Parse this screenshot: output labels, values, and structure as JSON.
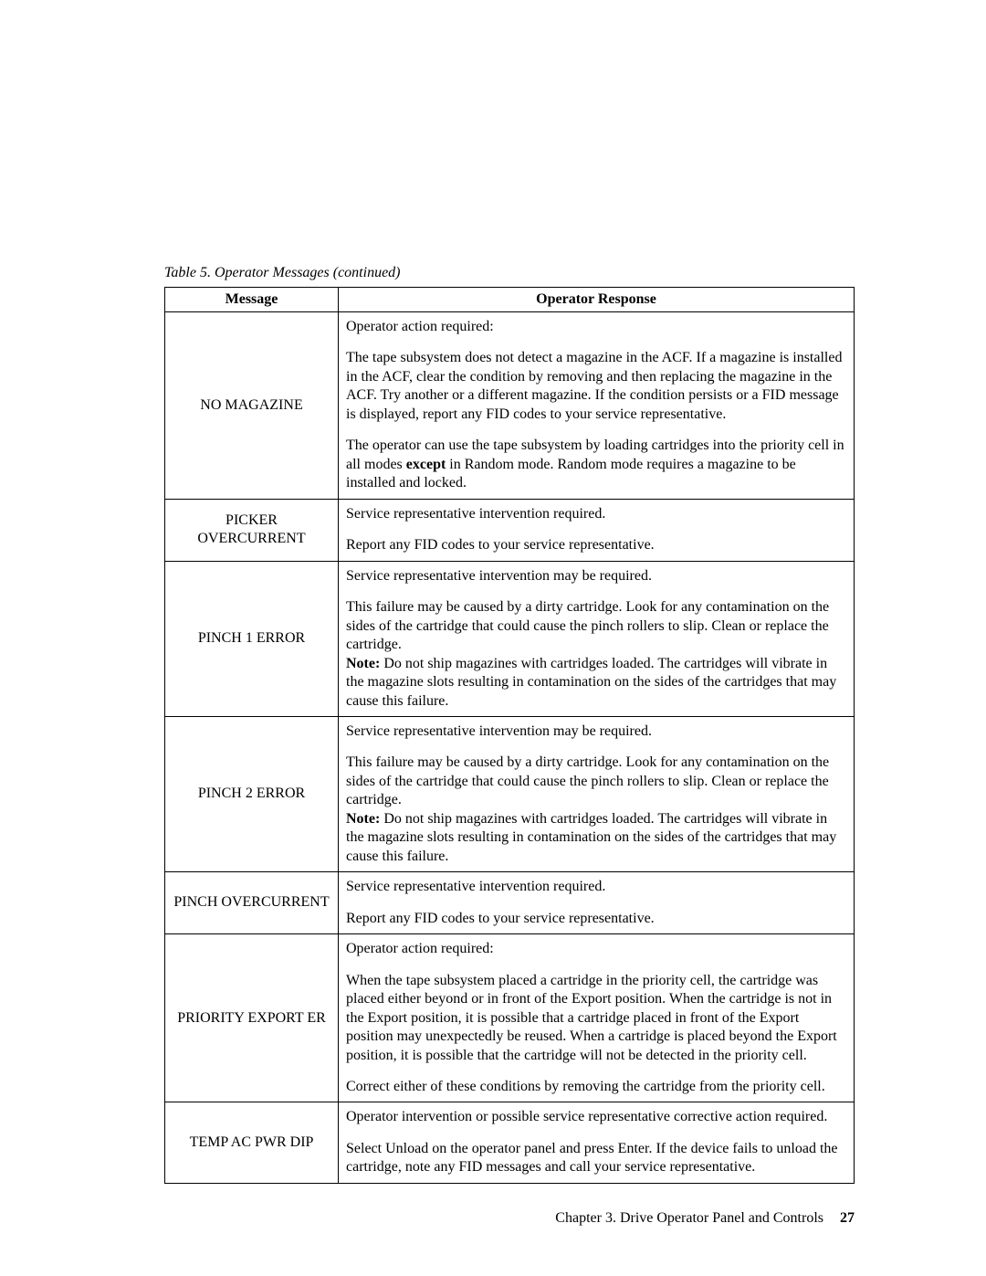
{
  "caption": "Table 5. Operator Messages  (continued)",
  "headers": {
    "message": "Message",
    "response": "Operator Response"
  },
  "rows": [
    {
      "message": "NO MAGAZINE",
      "response": [
        "Operator action required:",
        "The tape subsystem does not detect a magazine in the ACF. If a magazine is installed in the ACF, clear the condition by removing and then replacing the magazine in the ACF. Try another or a different magazine. If the condition persists or a FID message is displayed, report any FID codes to your service representative.",
        "The operator can use the tape subsystem by loading cartridges into the priority cell in all modes <b>except</b> in Random mode. Random mode requires a magazine to be installed and locked."
      ]
    },
    {
      "message": "PICKER OVERCURRENT",
      "response": [
        "Service representative intervention required.",
        "Report any FID codes to your service representative."
      ]
    },
    {
      "message": "PINCH 1 ERROR",
      "response": [
        "Service representative intervention may be required.",
        "This failure may be caused by a dirty cartridge. Look for any contamination on the sides of the cartridge that could cause the pinch rollers to slip. Clean or replace the cartridge.<br><b>Note:</b>  Do not ship magazines with cartridges loaded. The cartridges will vibrate in the magazine slots resulting in contamination on the sides of the cartridges that may cause this failure."
      ]
    },
    {
      "message": "PINCH 2 ERROR",
      "response": [
        "Service representative intervention may be required.",
        "This failure may be caused by a dirty cartridge. Look for any contamination on the sides of the cartridge that could cause the pinch rollers to slip. Clean or replace the cartridge.<br><b>Note:</b>  Do not ship magazines with cartridges loaded. The cartridges will vibrate in the magazine slots resulting in contamination on the sides of the cartridges that may cause this failure."
      ]
    },
    {
      "message": "PINCH OVERCURRENT",
      "response": [
        "Service representative intervention required.",
        "Report any FID codes to your service representative."
      ]
    },
    {
      "message": "PRIORITY EXPORT ER",
      "response": [
        "Operator action required:",
        "When the tape subsystem placed a cartridge in the priority cell, the cartridge was placed either beyond or in front of the Export position. When the cartridge is not in the Export position, it is possible that a cartridge placed in front of the Export position may unexpectedly be reused. When a cartridge is placed beyond the Export position, it is possible that the cartridge will not be detected in the priority cell.",
        "Correct either of these conditions by removing the cartridge from the priority cell."
      ]
    },
    {
      "message": "TEMP AC PWR DIP",
      "response": [
        "Operator intervention or possible service representative corrective action required.",
        "Select Unload on the operator panel and press Enter. If the device fails to unload the cartridge, note any FID messages and call your service representative."
      ]
    }
  ],
  "footer": {
    "chapter": "Chapter 3. Drive Operator Panel and Controls",
    "page": "27"
  }
}
